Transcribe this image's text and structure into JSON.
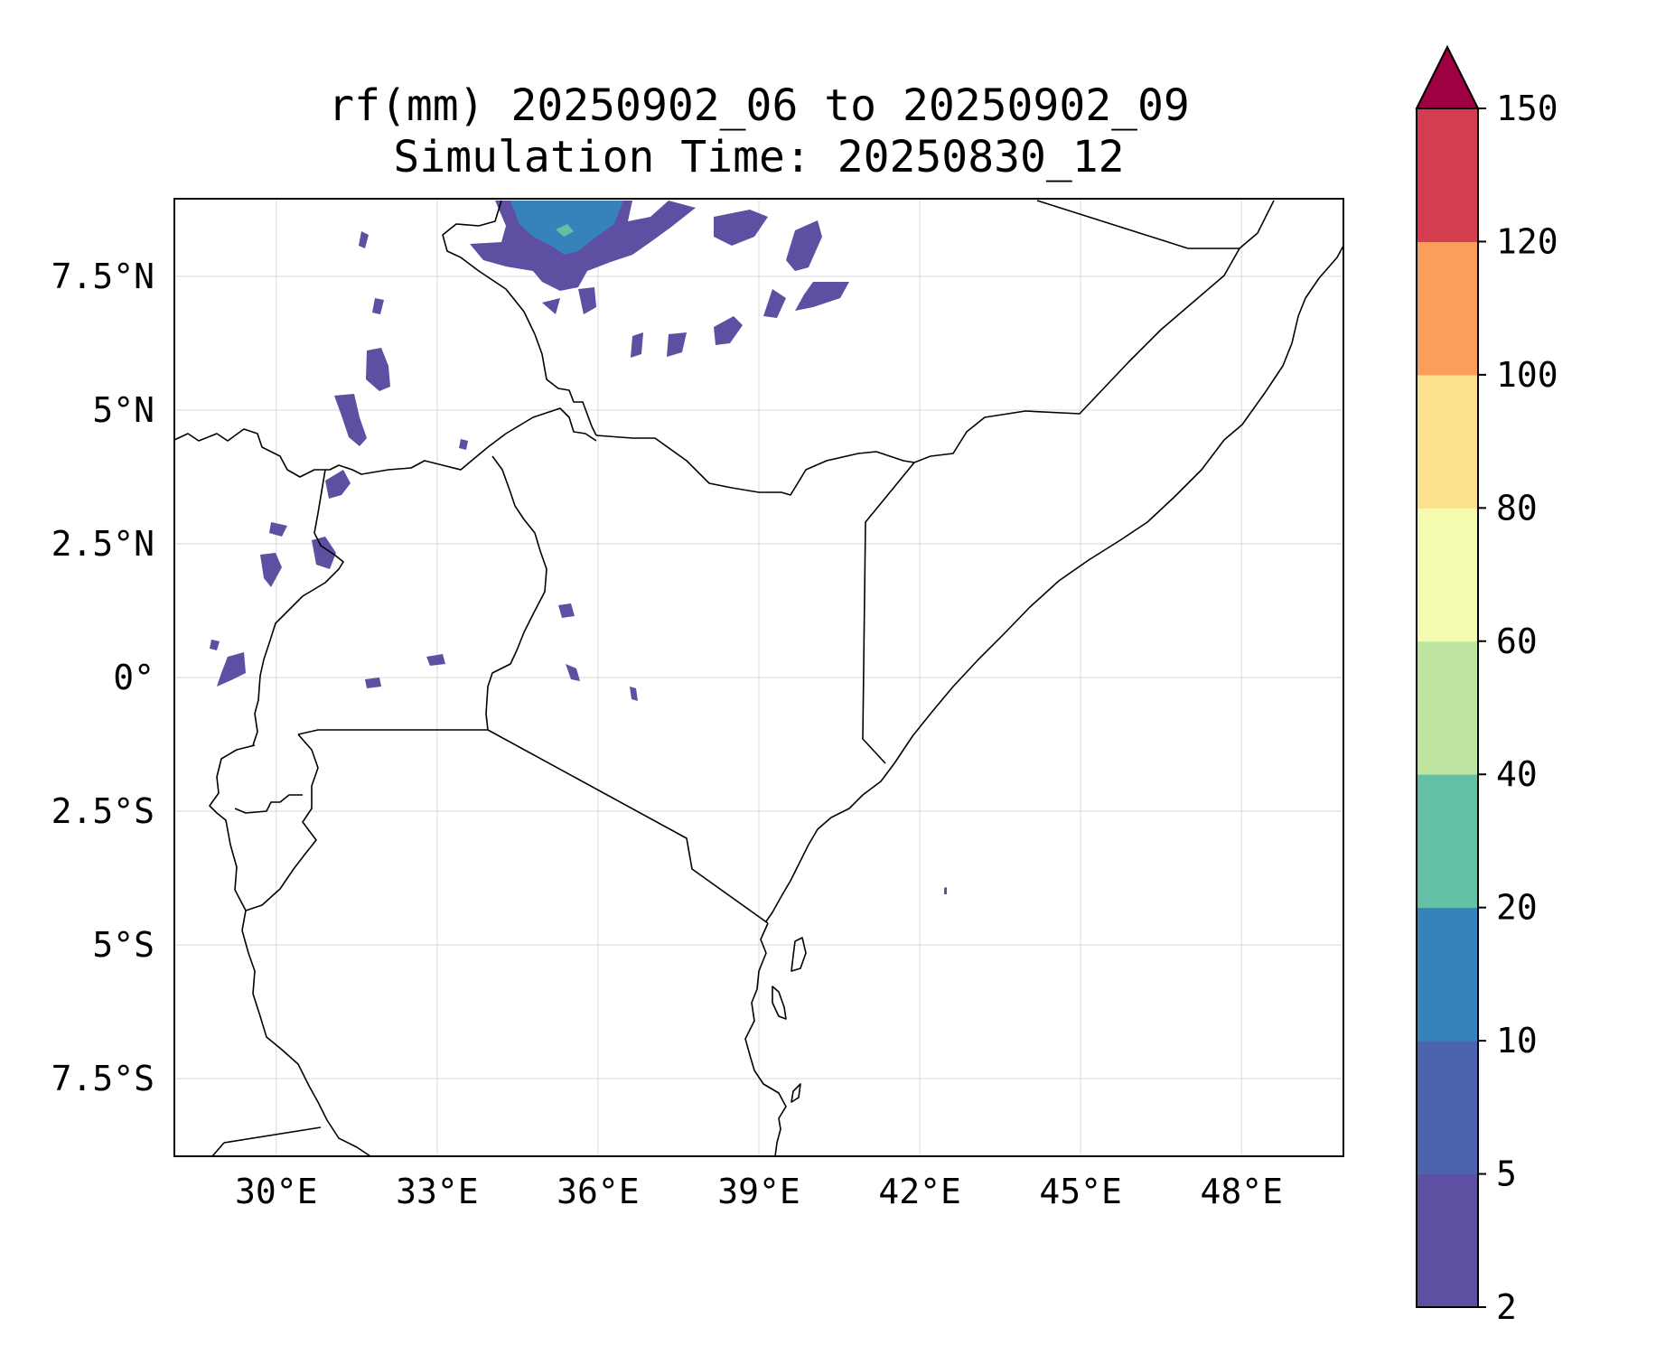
{
  "title": {
    "line1": "rf(mm) 20250902_06 to 20250902_09",
    "line2": "Simulation Time: 20250830_12"
  },
  "map": {
    "lon_range": [
      28.1,
      49.9
    ],
    "lat_range": [
      -8.95,
      8.95
    ],
    "x_ticks": [
      {
        "lon": 30,
        "label": "30°E"
      },
      {
        "lon": 33,
        "label": "33°E"
      },
      {
        "lon": 36,
        "label": "36°E"
      },
      {
        "lon": 39,
        "label": "39°E"
      },
      {
        "lon": 42,
        "label": "42°E"
      },
      {
        "lon": 45,
        "label": "45°E"
      },
      {
        "lon": 48,
        "label": "48°E"
      }
    ],
    "y_ticks": [
      {
        "lat": 7.5,
        "label": "7.5°N"
      },
      {
        "lat": 5,
        "label": "5°N"
      },
      {
        "lat": 2.5,
        "label": "2.5°N"
      },
      {
        "lat": 0,
        "label": "0°"
      },
      {
        "lat": -2.5,
        "label": "2.5°S"
      },
      {
        "lat": -5,
        "label": "5°S"
      },
      {
        "lat": -7.5,
        "label": "7.5°S"
      }
    ],
    "gridlines": true
  },
  "colorbar": {
    "levels": [
      "2",
      "5",
      "10",
      "20",
      "40",
      "60",
      "80",
      "100",
      "120",
      "150"
    ],
    "colors": [
      "#5e4fa2",
      "#4c64ad",
      "#3683bb",
      "#63c0a5",
      "#bde5a0",
      "#f4fbaf",
      "#fde08b",
      "#f99e5b",
      "#d43d4f"
    ],
    "extend_color": "#9e0142",
    "extend": "max"
  },
  "rainfall_colors": {
    "light": "#5e4fa2",
    "moderate": "#3683bb",
    "heavy": "#63c0a5"
  }
}
